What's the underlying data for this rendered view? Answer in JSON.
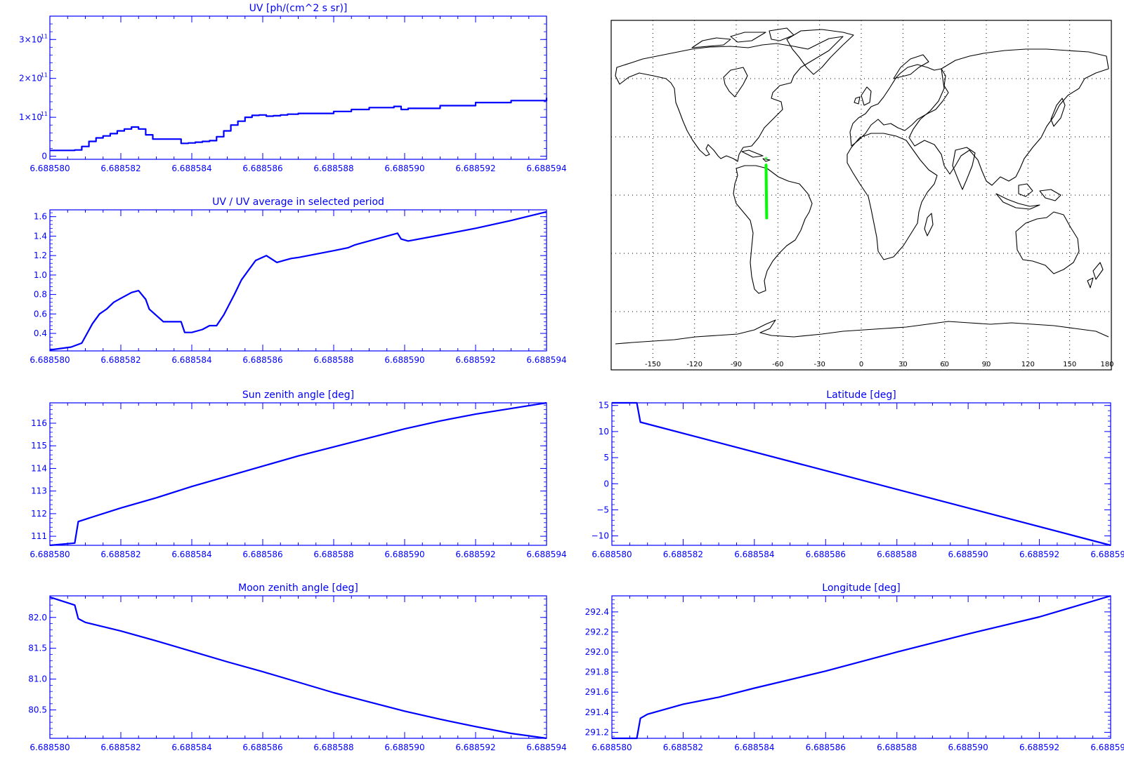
{
  "colors": {
    "plot": "#0000ff",
    "map_line": "#000000",
    "track": "#00ff00",
    "grid": "#000000",
    "background": "#ffffff"
  },
  "x_ticks": [
    "6.688580",
    "6.688582",
    "6.688584",
    "6.688586",
    "6.688588",
    "6.688590",
    "6.688592",
    "6.688594"
  ],
  "chart_data": [
    {
      "id": "uv",
      "type": "line",
      "step": true,
      "title": "UV [ph/(cm^2 s sr)]",
      "xlim": [
        6.68858,
        6.688594
      ],
      "ylim": [
        -8000000000.0,
        360000000000.0
      ],
      "yticks": [
        {
          "value": 0,
          "label": "0"
        },
        {
          "value": 100000000000.0,
          "label": "1×10",
          "exp": "11"
        },
        {
          "value": 200000000000.0,
          "label": "2×10",
          "exp": "11"
        },
        {
          "value": 300000000000.0,
          "label": "3×10",
          "exp": "11"
        }
      ],
      "series": [
        {
          "x": [
            6.68858,
            6.6885807,
            6.6885809,
            6.6885811,
            6.6885813,
            6.6885815,
            6.6885817,
            6.6885819,
            6.6885821,
            6.6885823,
            6.6885825,
            6.6885827,
            6.6885829,
            6.6885831,
            6.6885833,
            6.6885835,
            6.6885837,
            6.6885839,
            6.6885841,
            6.6885843,
            6.6885845,
            6.6885847,
            6.6885849,
            6.6885851,
            6.6885853,
            6.6885855,
            6.6885857,
            6.6885859,
            6.6885861,
            6.6885863,
            6.6885865,
            6.6885867,
            6.688587,
            6.688588,
            6.6885885,
            6.688589,
            6.6885897,
            6.6885899,
            6.6885901,
            6.688591,
            6.688592,
            6.688593,
            6.688594
          ],
          "y": [
            15000000000.0,
            16000000000.0,
            25000000000.0,
            38000000000.0,
            47000000000.0,
            52000000000.0,
            58000000000.0,
            65000000000.0,
            70000000000.0,
            75000000000.0,
            70000000000.0,
            55000000000.0,
            44000000000.0,
            44000000000.0,
            44000000000.0,
            44000000000.0,
            33000000000.0,
            34000000000.0,
            36000000000.0,
            38000000000.0,
            40000000000.0,
            50000000000.0,
            65000000000.0,
            80000000000.0,
            90000000000.0,
            100000000000.0,
            105000000000.0,
            106000000000.0,
            103000000000.0,
            104000000000.0,
            106000000000.0,
            108000000000.0,
            110000000000.0,
            115000000000.0,
            120000000000.0,
            125000000000.0,
            128000000000.0,
            120000000000.0,
            123000000000.0,
            130000000000.0,
            138000000000.0,
            143000000000.0,
            150000000000.0
          ]
        }
      ]
    },
    {
      "id": "ratio",
      "type": "line",
      "title": "UV / UV average in selected period",
      "xlim": [
        6.68858,
        6.688594
      ],
      "ylim": [
        0.22,
        1.67
      ],
      "yticks": [
        {
          "value": 0.4,
          "label": "0.4"
        },
        {
          "value": 0.6,
          "label": "0.6"
        },
        {
          "value": 0.8,
          "label": "0.8"
        },
        {
          "value": 1.0,
          "label": "1.0"
        },
        {
          "value": 1.2,
          "label": "1.2"
        },
        {
          "value": 1.4,
          "label": "1.4"
        },
        {
          "value": 1.6,
          "label": "1.6"
        }
      ],
      "series": [
        {
          "x": [
            6.68858,
            6.6885806,
            6.6885809,
            6.6885812,
            6.6885814,
            6.6885816,
            6.6885818,
            6.688582,
            6.6885823,
            6.6885825,
            6.6885827,
            6.6885828,
            6.6885832,
            6.6885836,
            6.6885837,
            6.6885838,
            6.688584,
            6.6885843,
            6.6885845,
            6.6885847,
            6.6885849,
            6.6885852,
            6.6885854,
            6.6885856,
            6.6885858,
            6.6885861,
            6.6885864,
            6.6885866,
            6.6885868,
            6.688587,
            6.688588,
            6.6885884,
            6.6885886,
            6.6885898,
            6.6885899,
            6.6885901,
            6.688591,
            6.688592,
            6.688593,
            6.688594
          ],
          "y": [
            0.23,
            0.26,
            0.3,
            0.5,
            0.6,
            0.65,
            0.72,
            0.76,
            0.82,
            0.84,
            0.75,
            0.65,
            0.52,
            0.52,
            0.52,
            0.41,
            0.41,
            0.44,
            0.48,
            0.48,
            0.59,
            0.8,
            0.95,
            1.05,
            1.15,
            1.2,
            1.13,
            1.15,
            1.17,
            1.18,
            1.25,
            1.28,
            1.31,
            1.43,
            1.37,
            1.35,
            1.41,
            1.48,
            1.56,
            1.65
          ]
        }
      ]
    },
    {
      "id": "sun",
      "type": "line",
      "title": "Sun zenith angle [deg]",
      "xlim": [
        6.68858,
        6.688594
      ],
      "ylim": [
        110.6,
        116.9
      ],
      "yticks": [
        {
          "value": 111,
          "label": "111"
        },
        {
          "value": 112,
          "label": "112"
        },
        {
          "value": 113,
          "label": "113"
        },
        {
          "value": 114,
          "label": "114"
        },
        {
          "value": 115,
          "label": "115"
        },
        {
          "value": 116,
          "label": "116"
        }
      ],
      "series": [
        {
          "x": [
            6.68858,
            6.6885807,
            6.6885808,
            6.688581,
            6.688582,
            6.688583,
            6.688584,
            6.688585,
            6.688586,
            6.688587,
            6.688588,
            6.688589,
            6.68859,
            6.688591,
            6.688592,
            6.688593,
            6.688594
          ],
          "y": [
            110.6,
            110.7,
            111.65,
            111.75,
            112.25,
            112.7,
            113.2,
            113.65,
            114.1,
            114.55,
            114.95,
            115.35,
            115.75,
            116.1,
            116.4,
            116.65,
            116.9
          ]
        }
      ]
    },
    {
      "id": "moon",
      "type": "line",
      "title": "Moon zenith angle [deg]",
      "xlim": [
        6.68858,
        6.688594
      ],
      "ylim": [
        80.04,
        82.35
      ],
      "yticks": [
        {
          "value": 80.5,
          "label": "80.5"
        },
        {
          "value": 81.0,
          "label": "81.0"
        },
        {
          "value": 81.5,
          "label": "81.5"
        },
        {
          "value": 82.0,
          "label": "82.0"
        }
      ],
      "series": [
        {
          "x": [
            6.68858,
            6.6885807,
            6.6885808,
            6.688581,
            6.688582,
            6.688583,
            6.688584,
            6.688585,
            6.688586,
            6.688587,
            6.688588,
            6.688589,
            6.68859,
            6.688591,
            6.688592,
            6.688593,
            6.688594
          ],
          "y": [
            82.33,
            82.2,
            81.98,
            81.92,
            81.78,
            81.62,
            81.45,
            81.28,
            81.12,
            80.95,
            80.78,
            80.63,
            80.48,
            80.35,
            80.23,
            80.12,
            80.04
          ]
        }
      ]
    },
    {
      "id": "lat",
      "type": "line",
      "title": "Latitude [deg]",
      "xlim": [
        6.68858,
        6.688594
      ],
      "ylim": [
        -11.8,
        15.5
      ],
      "yticks": [
        {
          "value": -10,
          "label": "−10"
        },
        {
          "value": -5,
          "label": "−5"
        },
        {
          "value": 0,
          "label": "0"
        },
        {
          "value": 5,
          "label": "5"
        },
        {
          "value": 10,
          "label": "10"
        },
        {
          "value": 15,
          "label": "15"
        }
      ],
      "series": [
        {
          "x": [
            6.68858,
            6.6885807,
            6.6885808,
            6.688594
          ],
          "y": [
            15.5,
            15.5,
            11.8,
            -11.8
          ]
        }
      ]
    },
    {
      "id": "lon",
      "type": "line",
      "title": "Longitude [deg]",
      "xlim": [
        6.68858,
        6.688594
      ],
      "ylim": [
        291.14,
        292.56
      ],
      "yticks": [
        {
          "value": 291.2,
          "label": "291.2"
        },
        {
          "value": 291.4,
          "label": "291.4"
        },
        {
          "value": 291.6,
          "label": "291.6"
        },
        {
          "value": 291.8,
          "label": "291.8"
        },
        {
          "value": 292.0,
          "label": "292.0"
        },
        {
          "value": 292.2,
          "label": "292.2"
        },
        {
          "value": 292.4,
          "label": "292.4"
        }
      ],
      "series": [
        {
          "x": [
            6.68858,
            6.6885807,
            6.6885808,
            6.688581,
            6.688582,
            6.688583,
            6.688584,
            6.688586,
            6.688588,
            6.68859,
            6.688592,
            6.688594
          ],
          "y": [
            291.14,
            291.14,
            291.34,
            291.38,
            291.48,
            291.55,
            291.64,
            291.81,
            292.0,
            292.18,
            292.35,
            292.56
          ]
        }
      ]
    }
  ],
  "map": {
    "lon_ticks": [
      "-150",
      "-120",
      "-90",
      "-60",
      "-30",
      "0",
      "30",
      "60",
      "90",
      "120",
      "150",
      "180"
    ],
    "track": {
      "lon": [
        -68.5,
        -68.1
      ],
      "lat": [
        15.5,
        -11.8
      ]
    }
  }
}
